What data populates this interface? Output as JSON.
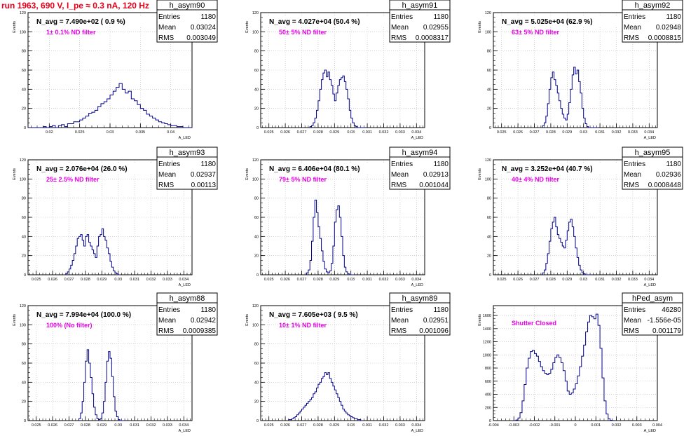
{
  "title": "run 1963,   690 V, I_pe ≈ 0.3 nA, 120 Hz",
  "colors": {
    "title": "#e8001a",
    "annotation": "#e800e8",
    "hist_line": "#00008b",
    "grid": "#b8b8b8"
  },
  "axis_labels": {
    "y": "Events",
    "x": "A_LED"
  },
  "chart_data": [
    {
      "type": "histogram",
      "hist_name": "h_asym90",
      "nvg": "N_avg = 7.490e+02 ( 0.9 %)",
      "note": "1± 0.1% ND filter",
      "entries": "1180",
      "mean": "0.03024",
      "rms": "0.003049",
      "xlim": [
        0.0165,
        0.0435
      ],
      "ylim": [
        0,
        120
      ],
      "xticks": [
        0.02,
        0.025,
        0.03,
        0.035,
        0.04
      ],
      "xtick_labels": [
        "0.02",
        "0.025",
        "0.03",
        "0.035",
        "0.04"
      ],
      "yticks": [
        0,
        20,
        40,
        60,
        80,
        100,
        120
      ],
      "ytick_labels": [
        "0",
        "20",
        "40",
        "60",
        "80",
        "100",
        "120"
      ],
      "bin_low": 0.0165,
      "bin_width": 0.0005,
      "values": [
        0,
        0,
        0,
        0,
        0,
        1,
        0,
        1,
        2,
        0,
        2,
        3,
        1,
        4,
        4,
        6,
        6,
        8,
        10,
        12,
        15,
        16,
        18,
        22,
        25,
        27,
        30,
        34,
        38,
        42,
        46,
        40,
        36,
        38,
        30,
        28,
        24,
        20,
        18,
        14,
        12,
        10,
        8,
        6,
        5,
        4,
        3,
        2,
        2,
        1,
        1,
        0,
        0,
        0
      ]
    },
    {
      "type": "histogram",
      "hist_name": "h_asym91",
      "nvg": "N_avg = 4.027e+04 (50.4 %)",
      "note": "50± 5% ND filter",
      "entries": "1180",
      "mean": "0.02955",
      "rms": "0.0008317",
      "xlim": [
        0.0245,
        0.0345
      ],
      "ylim": [
        0,
        120
      ],
      "xticks": [
        0.025,
        0.026,
        0.027,
        0.028,
        0.029,
        0.03,
        0.031,
        0.032,
        0.033,
        0.034
      ],
      "xtick_labels": [
        "0.025",
        "0.026",
        "0.027",
        "0.028",
        "0.029",
        "0.03",
        "0.031",
        "0.032",
        "0.033",
        "0.034"
      ],
      "yticks": [
        0,
        20,
        40,
        60,
        80,
        100,
        120
      ],
      "ytick_labels": [
        "0",
        "20",
        "40",
        "60",
        "80",
        "100",
        "120"
      ],
      "bin_low": 0.0275,
      "bin_width": 0.0001,
      "values": [
        1,
        2,
        5,
        10,
        18,
        28,
        40,
        50,
        57,
        60,
        53,
        58,
        50,
        44,
        35,
        28,
        36,
        44,
        50,
        52,
        54,
        48,
        40,
        30,
        18,
        10,
        5,
        2,
        1,
        0,
        0,
        0,
        0,
        0
      ]
    },
    {
      "type": "histogram",
      "hist_name": "h_asym92",
      "nvg": "N_avg = 5.025e+04 (62.9 %)",
      "note": "63± 5% ND filter",
      "entries": "1180",
      "mean": "0.02948",
      "rms": "0.0008815",
      "xlim": [
        0.0245,
        0.0345
      ],
      "ylim": [
        0,
        120
      ],
      "xticks": [
        0.025,
        0.026,
        0.027,
        0.028,
        0.029,
        0.03,
        0.031,
        0.032,
        0.033,
        0.034
      ],
      "xtick_labels": [
        "0.025",
        "0.026",
        "0.027",
        "0.028",
        "0.029",
        "0.03",
        "0.031",
        "0.032",
        "0.033",
        "0.034"
      ],
      "yticks": [
        0,
        20,
        40,
        60,
        80,
        100,
        120
      ],
      "ytick_labels": [
        "0",
        "20",
        "40",
        "60",
        "80",
        "100",
        "120"
      ],
      "bin_low": 0.0275,
      "bin_width": 0.0001,
      "values": [
        2,
        5,
        12,
        25,
        40,
        52,
        58,
        50,
        44,
        36,
        28,
        20,
        14,
        10,
        8,
        14,
        26,
        40,
        55,
        63,
        56,
        60,
        48,
        36,
        20,
        10,
        4,
        1,
        0,
        0,
        0,
        0,
        0,
        0
      ]
    },
    {
      "type": "histogram",
      "hist_name": "h_asym93",
      "nvg": "N_avg = 2.076e+04 (26.0 %)",
      "note": "25± 2.5% ND filter",
      "entries": "1180",
      "mean": "0.02937",
      "rms": "0.00113",
      "xlim": [
        0.0245,
        0.0345
      ],
      "ylim": [
        0,
        120
      ],
      "xticks": [
        0.025,
        0.026,
        0.027,
        0.028,
        0.029,
        0.03,
        0.031,
        0.032,
        0.033,
        0.034
      ],
      "xtick_labels": [
        "0.025",
        "0.026",
        "0.027",
        "0.028",
        "0.029",
        "0.03",
        "0.031",
        "0.032",
        "0.033",
        "0.034"
      ],
      "yticks": [
        0,
        20,
        40,
        60,
        80,
        100,
        120
      ],
      "ytick_labels": [
        "0",
        "20",
        "40",
        "60",
        "80",
        "100",
        "120"
      ],
      "bin_low": 0.0268,
      "bin_width": 0.0001,
      "values": [
        1,
        3,
        6,
        10,
        15,
        22,
        30,
        38,
        40,
        42,
        36,
        30,
        40,
        42,
        34,
        30,
        26,
        22,
        18,
        30,
        40,
        42,
        48,
        40,
        36,
        28,
        22,
        14,
        8,
        4,
        2,
        1,
        0
      ]
    },
    {
      "type": "histogram",
      "hist_name": "h_asym94",
      "nvg": "N_avg = 6.406e+04 (80.1 %)",
      "note": "79± 5% ND filter",
      "entries": "1180",
      "mean": "0.02913",
      "rms": "0.001044",
      "xlim": [
        0.0245,
        0.0345
      ],
      "ylim": [
        0,
        120
      ],
      "xticks": [
        0.025,
        0.026,
        0.027,
        0.028,
        0.029,
        0.03,
        0.031,
        0.032,
        0.033,
        0.034
      ],
      "xtick_labels": [
        "0.025",
        "0.026",
        "0.027",
        "0.028",
        "0.029",
        "0.03",
        "0.031",
        "0.032",
        "0.033",
        "0.034"
      ],
      "yticks": [
        0,
        20,
        40,
        60,
        80,
        100,
        120
      ],
      "ytick_labels": [
        "0",
        "20",
        "40",
        "60",
        "80",
        "100",
        "120"
      ],
      "bin_low": 0.0273,
      "bin_width": 0.0001,
      "values": [
        2,
        5,
        15,
        35,
        60,
        78,
        65,
        50,
        38,
        25,
        14,
        6,
        3,
        2,
        4,
        12,
        30,
        55,
        68,
        72,
        60,
        40,
        20,
        8,
        3,
        1,
        0,
        0,
        0
      ]
    },
    {
      "type": "histogram",
      "hist_name": "h_asym95",
      "nvg": "N_avg = 3.252e+04 (40.7 %)",
      "note": "40± 4% ND filter",
      "entries": "1180",
      "mean": "0.02936",
      "rms": "0.0008448",
      "xlim": [
        0.0245,
        0.0345
      ],
      "ylim": [
        0,
        120
      ],
      "xticks": [
        0.025,
        0.026,
        0.027,
        0.028,
        0.029,
        0.03,
        0.031,
        0.032,
        0.033,
        0.034
      ],
      "xtick_labels": [
        "0.025",
        "0.026",
        "0.027",
        "0.028",
        "0.029",
        "0.03",
        "0.031",
        "0.032",
        "0.033",
        "0.034"
      ],
      "yticks": [
        0,
        20,
        40,
        60,
        80,
        100,
        120
      ],
      "ytick_labels": [
        "0",
        "20",
        "40",
        "60",
        "80",
        "100",
        "120"
      ],
      "bin_low": 0.0275,
      "bin_width": 0.0001,
      "values": [
        2,
        5,
        12,
        22,
        35,
        48,
        55,
        60,
        50,
        42,
        38,
        34,
        30,
        28,
        36,
        46,
        55,
        58,
        50,
        40,
        28,
        18,
        10,
        5,
        2,
        1,
        0,
        0,
        0,
        0
      ]
    },
    {
      "type": "histogram",
      "hist_name": "h_asym88",
      "nvg": "N_avg = 7.994e+04 (100.0 %)",
      "note": "100% (No filter)",
      "entries": "1180",
      "mean": "0.02942",
      "rms": "0.0009385",
      "xlim": [
        0.0245,
        0.0345
      ],
      "ylim": [
        0,
        120
      ],
      "xticks": [
        0.025,
        0.026,
        0.027,
        0.028,
        0.029,
        0.03,
        0.031,
        0.032,
        0.033,
        0.034
      ],
      "xtick_labels": [
        "0.025",
        "0.026",
        "0.027",
        "0.028",
        "0.029",
        "0.03",
        "0.031",
        "0.032",
        "0.033",
        "0.034"
      ],
      "yticks": [
        0,
        20,
        40,
        60,
        80,
        100,
        120
      ],
      "ytick_labels": [
        "0",
        "20",
        "40",
        "60",
        "80",
        "100",
        "120"
      ],
      "bin_low": 0.0276,
      "bin_width": 0.0001,
      "values": [
        2,
        8,
        20,
        40,
        62,
        74,
        60,
        45,
        28,
        14,
        6,
        2,
        1,
        2,
        8,
        20,
        40,
        62,
        72,
        65,
        46,
        25,
        10,
        4,
        1,
        0,
        0,
        0
      ]
    },
    {
      "type": "histogram",
      "hist_name": "h_asym89",
      "nvg": "N_avg = 7.605e+03 ( 9.5 %)",
      "note": "10± 1% ND filter",
      "entries": "1180",
      "mean": "0.02951",
      "rms": "0.001096",
      "xlim": [
        0.0245,
        0.0345
      ],
      "ylim": [
        0,
        120
      ],
      "xticks": [
        0.025,
        0.026,
        0.027,
        0.028,
        0.029,
        0.03,
        0.031,
        0.032,
        0.033,
        0.034
      ],
      "xtick_labels": [
        "0.025",
        "0.026",
        "0.027",
        "0.028",
        "0.029",
        "0.03",
        "0.031",
        "0.032",
        "0.033",
        "0.034"
      ],
      "yticks": [
        0,
        20,
        40,
        60,
        80,
        100,
        120
      ],
      "ytick_labels": [
        "0",
        "20",
        "40",
        "60",
        "80",
        "100",
        "120"
      ],
      "bin_low": 0.0262,
      "bin_width": 0.0001,
      "values": [
        1,
        1,
        2,
        3,
        4,
        6,
        8,
        10,
        12,
        14,
        16,
        18,
        20,
        22,
        24,
        28,
        30,
        34,
        38,
        40,
        44,
        46,
        50,
        48,
        50,
        44,
        40,
        36,
        32,
        28,
        24,
        20,
        16,
        12,
        10,
        8,
        6,
        5,
        4,
        3,
        2,
        2,
        1,
        1,
        0
      ]
    },
    {
      "type": "histogram",
      "hist_name": "hPed_asym",
      "nvg": "",
      "note": "Shutter Closed",
      "entries": "46280",
      "mean": "-1.556e-05",
      "rms": "0.001179",
      "xlim": [
        -0.004,
        0.004
      ],
      "ylim": [
        0,
        1750
      ],
      "xticks": [
        -0.004,
        -0.003,
        -0.002,
        -0.001,
        0,
        0.001,
        0.002,
        0.003,
        0.004
      ],
      "xtick_labels": [
        "-0.004",
        "-0.003",
        "-0.002",
        "-0.001",
        "0",
        "0.001",
        "0.002",
        "0.003",
        "0.004"
      ],
      "yticks": [
        0,
        200,
        400,
        600,
        800,
        1000,
        1200,
        1400,
        1600
      ],
      "ytick_labels": [
        "0",
        "200",
        "400",
        "600",
        "800",
        "1000",
        "1200",
        "1400",
        "1600"
      ],
      "bin_low": -0.003,
      "bin_width": 0.0001,
      "values": [
        2,
        10,
        40,
        120,
        300,
        550,
        800,
        950,
        1050,
        1070,
        1020,
        980,
        900,
        820,
        760,
        720,
        700,
        720,
        780,
        880,
        960,
        1000,
        960,
        880,
        760,
        600,
        450,
        400,
        420,
        480,
        560,
        680,
        820,
        980,
        1150,
        1350,
        1500,
        1600,
        1580,
        1550,
        1620,
        1450,
        1100,
        650,
        300,
        100,
        25,
        5,
        1
      ]
    }
  ]
}
